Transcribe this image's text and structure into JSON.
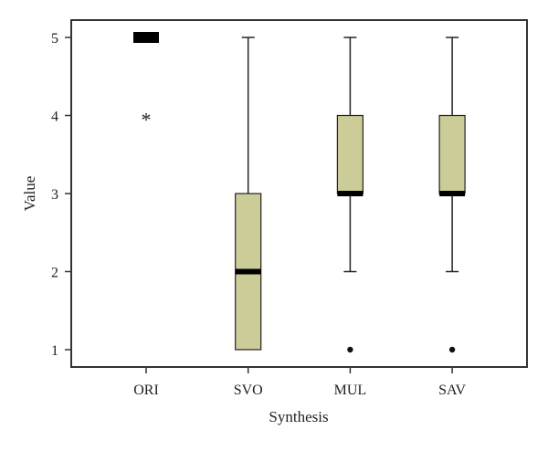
{
  "chart_data": {
    "type": "box",
    "xlabel": "Synthesis",
    "ylabel": "Value",
    "ylim": [
      0.78,
      5.22
    ],
    "yticks": [
      1,
      2,
      3,
      4,
      5
    ],
    "grid": false,
    "categories": [
      "ORI",
      "SVO",
      "MUL",
      "SAV"
    ],
    "boxes": [
      {
        "category": "ORI",
        "min": 5,
        "q1": 5,
        "median": 5,
        "q3": 5,
        "max": 5,
        "outliers": [],
        "extremes": [
          4
        ]
      },
      {
        "category": "SVO",
        "min": 1,
        "q1": 1,
        "median": 2,
        "q3": 3,
        "max": 5,
        "outliers": [],
        "extremes": []
      },
      {
        "category": "MUL",
        "min": 2,
        "q1": 3,
        "median": 3,
        "q3": 4,
        "max": 5,
        "outliers": [
          1
        ],
        "extremes": []
      },
      {
        "category": "SAV",
        "min": 2,
        "q1": 3,
        "median": 3,
        "q3": 4,
        "max": 5,
        "outliers": [
          1
        ],
        "extremes": []
      }
    ],
    "colors": {
      "box_fill": "#cccc99",
      "line": "#222222"
    }
  }
}
